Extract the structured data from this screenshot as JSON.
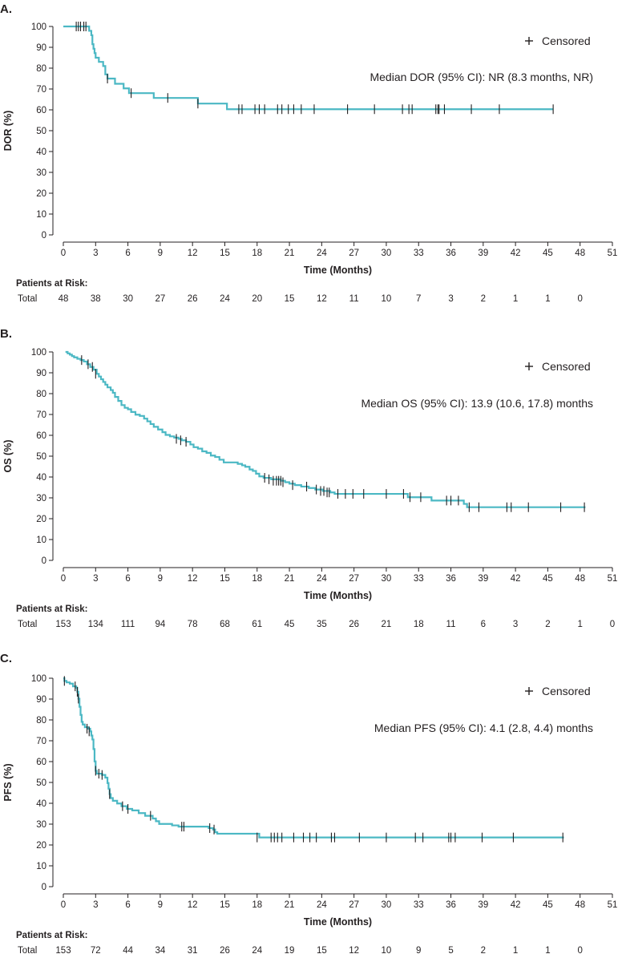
{
  "chart_data": [
    {
      "type": "line",
      "panel": "A.",
      "ylabel": "DOR (%)",
      "xlabel": "Time (Months)",
      "xlim": [
        0,
        51
      ],
      "ylim": [
        0,
        100
      ],
      "xticks": [
        0,
        3,
        6,
        9,
        12,
        15,
        18,
        21,
        24,
        27,
        30,
        33,
        36,
        39,
        42,
        45,
        48,
        51
      ],
      "yticks": [
        0,
        10,
        20,
        30,
        40,
        50,
        60,
        70,
        80,
        90,
        100
      ],
      "legend": "Censored",
      "legend_symbol": "+",
      "median_text": "Median DOR (95% CI): NR (8.3 months, NR)",
      "risk_title": "Patients at Risk:",
      "risk_row_label": "Total",
      "risk_values": [
        "48",
        "38",
        "30",
        "27",
        "26",
        "24",
        "20",
        "15",
        "12",
        "11",
        "10",
        "7",
        "3",
        "2",
        "1",
        "1",
        "0"
      ],
      "curve_color": "#4bb8c4",
      "series": [
        {
          "name": "DOR",
          "points": [
            [
              0,
              100
            ],
            [
              2.3,
              100
            ],
            [
              2.4,
              97.9
            ],
            [
              2.6,
              95.8
            ],
            [
              2.7,
              91.5
            ],
            [
              2.8,
              89.3
            ],
            [
              2.9,
              87.2
            ],
            [
              3.0,
              85.0
            ],
            [
              3.2,
              85.0
            ],
            [
              3.3,
              83.0
            ],
            [
              3.6,
              83.0
            ],
            [
              3.7,
              81.0
            ],
            [
              3.9,
              77.0
            ],
            [
              4.1,
              75.0
            ],
            [
              4.7,
              75.0
            ],
            [
              4.8,
              72.5
            ],
            [
              5.5,
              72.5
            ],
            [
              5.6,
              70.3
            ],
            [
              6.0,
              70.3
            ],
            [
              6.1,
              68.0
            ],
            [
              8.3,
              68.0
            ],
            [
              8.4,
              65.7
            ],
            [
              12.4,
              65.7
            ],
            [
              12.5,
              63.0
            ],
            [
              15.1,
              63.0
            ],
            [
              15.2,
              60.3
            ],
            [
              45.5,
              60.3
            ]
          ]
        }
      ],
      "censored": [
        [
          1.2,
          100
        ],
        [
          1.4,
          100
        ],
        [
          1.6,
          100
        ],
        [
          1.9,
          100
        ],
        [
          2.1,
          100
        ],
        [
          4.1,
          75.0
        ],
        [
          6.3,
          68.0
        ],
        [
          9.7,
          65.7
        ],
        [
          12.5,
          63.0
        ],
        [
          16.3,
          60.3
        ],
        [
          16.6,
          60.3
        ],
        [
          17.8,
          60.3
        ],
        [
          18.2,
          60.3
        ],
        [
          18.7,
          60.3
        ],
        [
          19.9,
          60.3
        ],
        [
          20.3,
          60.3
        ],
        [
          20.9,
          60.3
        ],
        [
          21.4,
          60.3
        ],
        [
          22.1,
          60.3
        ],
        [
          23.3,
          60.3
        ],
        [
          26.4,
          60.3
        ],
        [
          28.9,
          60.3
        ],
        [
          31.5,
          60.3
        ],
        [
          32.1,
          60.3
        ],
        [
          32.4,
          60.3
        ],
        [
          34.6,
          60.3
        ],
        [
          34.8,
          60.3
        ],
        [
          34.9,
          60.3
        ],
        [
          35.4,
          60.3
        ],
        [
          37.9,
          60.3
        ],
        [
          40.5,
          60.3
        ],
        [
          45.5,
          60.3
        ]
      ]
    },
    {
      "type": "line",
      "panel": "B.",
      "ylabel": "OS (%)",
      "xlabel": "Time (Months)",
      "xlim": [
        0,
        51
      ],
      "ylim": [
        0,
        100
      ],
      "xticks": [
        0,
        3,
        6,
        9,
        12,
        15,
        18,
        21,
        24,
        27,
        30,
        33,
        36,
        39,
        42,
        45,
        48,
        51
      ],
      "yticks": [
        0,
        10,
        20,
        30,
        40,
        50,
        60,
        70,
        80,
        90,
        100
      ],
      "legend": "Censored",
      "legend_symbol": "+",
      "median_text": "Median OS (95% CI): 13.9 (10.6, 17.8) months",
      "risk_title": "Patients at Risk:",
      "risk_row_label": "Total",
      "risk_values": [
        "153",
        "134",
        "111",
        "94",
        "78",
        "68",
        "61",
        "45",
        "35",
        "26",
        "21",
        "18",
        "11",
        "6",
        "3",
        "2",
        "1",
        "0"
      ],
      "curve_color": "#4bb8c4",
      "series": [
        {
          "name": "OS",
          "points": [
            [
              0.2,
              100
            ],
            [
              0.4,
              99.3
            ],
            [
              0.6,
              98.7
            ],
            [
              0.8,
              98.0
            ],
            [
              1.0,
              97.4
            ],
            [
              1.3,
              96.7
            ],
            [
              1.6,
              96.1
            ],
            [
              1.9,
              95.4
            ],
            [
              2.2,
              94.1
            ],
            [
              2.5,
              92.8
            ],
            [
              2.8,
              91.5
            ],
            [
              3.1,
              89.5
            ],
            [
              3.3,
              88.2
            ],
            [
              3.5,
              86.9
            ],
            [
              3.7,
              85.6
            ],
            [
              3.9,
              84.3
            ],
            [
              4.1,
              83.0
            ],
            [
              4.4,
              81.7
            ],
            [
              4.6,
              80.4
            ],
            [
              4.8,
              78.4
            ],
            [
              5.1,
              76.5
            ],
            [
              5.4,
              74.5
            ],
            [
              5.7,
              73.2
            ],
            [
              6.0,
              72.5
            ],
            [
              6.3,
              71.2
            ],
            [
              6.7,
              69.9
            ],
            [
              7.1,
              69.3
            ],
            [
              7.5,
              68.0
            ],
            [
              7.8,
              66.7
            ],
            [
              8.1,
              65.4
            ],
            [
              8.4,
              64.1
            ],
            [
              8.8,
              62.8
            ],
            [
              9.2,
              61.5
            ],
            [
              9.5,
              60.2
            ],
            [
              9.9,
              59.5
            ],
            [
              10.3,
              58.9
            ],
            [
              10.7,
              58.3
            ],
            [
              11.0,
              57.6
            ],
            [
              11.4,
              56.9
            ],
            [
              11.8,
              55.6
            ],
            [
              12.1,
              54.3
            ],
            [
              12.5,
              53.6
            ],
            [
              12.9,
              52.3
            ],
            [
              13.3,
              51.6
            ],
            [
              13.7,
              50.3
            ],
            [
              14.1,
              49.6
            ],
            [
              14.5,
              48.3
            ],
            [
              14.9,
              47.0
            ],
            [
              16.2,
              46.3
            ],
            [
              16.6,
              45.6
            ],
            [
              16.9,
              44.9
            ],
            [
              17.3,
              43.6
            ],
            [
              17.6,
              42.9
            ],
            [
              17.9,
              41.6
            ],
            [
              18.2,
              40.3
            ],
            [
              18.6,
              39.6
            ],
            [
              19.3,
              38.9
            ],
            [
              20.2,
              38.2
            ],
            [
              20.6,
              37.5
            ],
            [
              21.0,
              36.8
            ],
            [
              21.5,
              36.1
            ],
            [
              22.1,
              35.4
            ],
            [
              22.8,
              34.7
            ],
            [
              23.4,
              34.0
            ],
            [
              24.1,
              33.3
            ],
            [
              24.8,
              32.6
            ],
            [
              25.2,
              31.9
            ],
            [
              31.7,
              31.9
            ],
            [
              32.0,
              30.3
            ],
            [
              33.9,
              30.3
            ],
            [
              34.2,
              28.7
            ],
            [
              36.9,
              28.7
            ],
            [
              37.2,
              27.1
            ],
            [
              37.5,
              25.5
            ],
            [
              48.5,
              25.5
            ]
          ]
        }
      ],
      "censored": [
        [
          1.7,
          96.1
        ],
        [
          2.3,
          94.1
        ],
        [
          2.7,
          92.8
        ],
        [
          3.0,
          89.5
        ],
        [
          10.5,
          58.3
        ],
        [
          10.9,
          57.6
        ],
        [
          11.4,
          56.9
        ],
        [
          18.7,
          39.6
        ],
        [
          19.1,
          38.9
        ],
        [
          19.5,
          38.2
        ],
        [
          19.8,
          38.2
        ],
        [
          20.0,
          38.2
        ],
        [
          20.2,
          38.2
        ],
        [
          20.4,
          37.5
        ],
        [
          21.3,
          36.1
        ],
        [
          22.6,
          35.4
        ],
        [
          23.5,
          34.0
        ],
        [
          23.9,
          33.3
        ],
        [
          24.2,
          33.3
        ],
        [
          24.5,
          32.6
        ],
        [
          24.7,
          32.6
        ],
        [
          25.5,
          31.9
        ],
        [
          26.2,
          31.9
        ],
        [
          26.9,
          31.9
        ],
        [
          27.9,
          31.9
        ],
        [
          30.0,
          31.9
        ],
        [
          31.6,
          31.9
        ],
        [
          32.2,
          30.3
        ],
        [
          33.2,
          30.3
        ],
        [
          35.6,
          28.7
        ],
        [
          36.0,
          28.7
        ],
        [
          36.7,
          28.7
        ],
        [
          37.7,
          25.5
        ],
        [
          38.6,
          25.5
        ],
        [
          41.2,
          25.5
        ],
        [
          41.6,
          25.5
        ],
        [
          43.2,
          25.5
        ],
        [
          46.2,
          25.5
        ],
        [
          48.4,
          25.5
        ]
      ]
    },
    {
      "type": "line",
      "panel": "C.",
      "ylabel": "PFS (%)",
      "xlabel": "Time (Months)",
      "xlim": [
        0,
        51
      ],
      "ylim": [
        0,
        100
      ],
      "xticks": [
        0,
        3,
        6,
        9,
        12,
        15,
        18,
        21,
        24,
        27,
        30,
        33,
        36,
        39,
        42,
        45,
        48,
        51
      ],
      "yticks": [
        0,
        10,
        20,
        30,
        40,
        50,
        60,
        70,
        80,
        90,
        100
      ],
      "legend": "Censored",
      "legend_symbol": "+",
      "median_text": "Median PFS (95% CI): 4.1 (2.8, 4.4) months",
      "risk_title": "Patients at Risk:",
      "risk_row_label": "Total",
      "risk_values": [
        "153",
        "72",
        "44",
        "34",
        "31",
        "26",
        "24",
        "19",
        "15",
        "12",
        "10",
        "9",
        "5",
        "2",
        "1",
        "1",
        "0"
      ],
      "curve_color": "#4bb8c4",
      "series": [
        {
          "name": "PFS",
          "points": [
            [
              0,
              100
            ],
            [
              0.1,
              98.7
            ],
            [
              0.3,
              98.0
            ],
            [
              0.6,
              97.4
            ],
            [
              0.9,
              96.1
            ],
            [
              1.2,
              95.4
            ],
            [
              1.3,
              93.5
            ],
            [
              1.4,
              90.2
            ],
            [
              1.5,
              86.3
            ],
            [
              1.6,
              82.4
            ],
            [
              1.7,
              79.1
            ],
            [
              1.8,
              77.8
            ],
            [
              2.0,
              76.5
            ],
            [
              2.3,
              75.8
            ],
            [
              2.5,
              74.5
            ],
            [
              2.6,
              72.5
            ],
            [
              2.7,
              70.6
            ],
            [
              2.8,
              66.0
            ],
            [
              2.9,
              60.1
            ],
            [
              3.0,
              55.6
            ],
            [
              3.1,
              54.2
            ],
            [
              3.6,
              53.6
            ],
            [
              3.9,
              52.3
            ],
            [
              4.1,
              49.7
            ],
            [
              4.2,
              47.0
            ],
            [
              4.3,
              44.4
            ],
            [
              4.4,
              42.5
            ],
            [
              4.6,
              41.2
            ],
            [
              5.0,
              39.9
            ],
            [
              5.4,
              38.6
            ],
            [
              5.9,
              37.3
            ],
            [
              6.4,
              36.6
            ],
            [
              7.0,
              35.3
            ],
            [
              7.6,
              34.0
            ],
            [
              8.3,
              32.7
            ],
            [
              8.6,
              31.4
            ],
            [
              8.9,
              30.1
            ],
            [
              10.1,
              29.4
            ],
            [
              10.7,
              28.8
            ],
            [
              13.5,
              28.1
            ],
            [
              13.9,
              27.4
            ],
            [
              14.1,
              26.1
            ],
            [
              14.3,
              25.4
            ],
            [
              18.1,
              25.4
            ],
            [
              18.2,
              23.6
            ],
            [
              46.5,
              23.6
            ]
          ]
        }
      ],
      "censored": [
        [
          0.1,
          98.7
        ],
        [
          1.1,
          96.1
        ],
        [
          1.3,
          93.5
        ],
        [
          1.4,
          90.2
        ],
        [
          2.2,
          75.8
        ],
        [
          2.4,
          74.5
        ],
        [
          3.0,
          55.6
        ],
        [
          3.3,
          54.2
        ],
        [
          3.6,
          53.6
        ],
        [
          4.3,
          44.4
        ],
        [
          5.5,
          38.6
        ],
        [
          6.0,
          37.3
        ],
        [
          8.1,
          34.0
        ],
        [
          11.0,
          28.8
        ],
        [
          11.2,
          28.8
        ],
        [
          13.6,
          28.1
        ],
        [
          14.0,
          27.4
        ],
        [
          18.0,
          23.6
        ],
        [
          19.3,
          23.6
        ],
        [
          19.6,
          23.6
        ],
        [
          19.9,
          23.6
        ],
        [
          20.3,
          23.6
        ],
        [
          21.4,
          23.6
        ],
        [
          22.3,
          23.6
        ],
        [
          22.9,
          23.6
        ],
        [
          23.5,
          23.6
        ],
        [
          24.9,
          23.6
        ],
        [
          25.2,
          23.6
        ],
        [
          27.5,
          23.6
        ],
        [
          30.0,
          23.6
        ],
        [
          32.7,
          23.6
        ],
        [
          33.4,
          23.6
        ],
        [
          35.8,
          23.6
        ],
        [
          36.0,
          23.6
        ],
        [
          36.4,
          23.6
        ],
        [
          38.9,
          23.6
        ],
        [
          41.8,
          23.6
        ],
        [
          46.4,
          23.6
        ]
      ]
    }
  ]
}
